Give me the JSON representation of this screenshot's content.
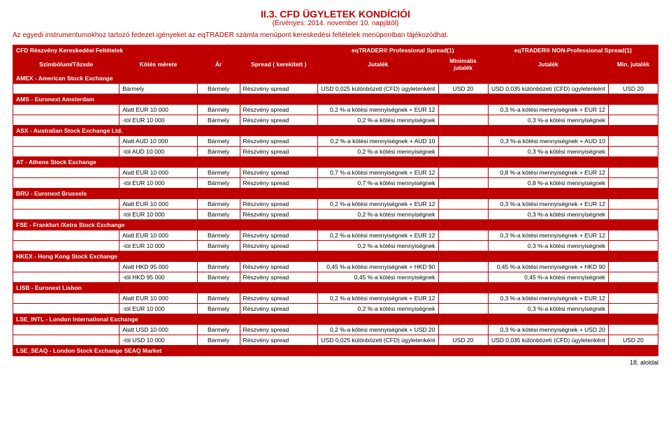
{
  "title": "II.3. CFD ÜGYLETEK KONDÍCIÓI",
  "subtitle": "(Érvényes: 2014. november 10. napjától)",
  "intro": "Az egyedi instrumentumokhoz tartozó fedezet igényeket az eqTRADER számla menüpont kereskedési feltételek menüpontban tájékozódhat.",
  "topHeader": {
    "left": "CFD Részvény Kereskedési Feltételek",
    "pro": "eqTRADER® Professional Spread(1)",
    "nonpro": "eqTRADER® NON-Professional Spread(1)"
  },
  "cols": {
    "c1": "Szimbólum/Tőzsde",
    "c2": "Kötés mérete",
    "c3": "Ár",
    "c4": "Spread ( kerekített )",
    "c5": "Jutalék",
    "c6": "Minimális jutalék",
    "c7": "Jutalék",
    "c8": "Min. jutalék"
  },
  "sections": [
    {
      "name": "AMEX - American Stock Exchange",
      "rows": [
        {
          "size": "Bármely",
          "price": "Bármely",
          "spread": "Részvény spread",
          "j1": "USD 0,025 különbözeti (CFD) ügyletenként",
          "m1": "USD 20",
          "j2": "USD 0,035 különbözeti (CFD) ügyletenként",
          "m2": "USD 20"
        }
      ]
    },
    {
      "name": "AMS - Euronext Amsterdam",
      "rows": [
        {
          "size": "Alatt EUR 10 000",
          "price": "Bármely",
          "spread": "Részvény spread",
          "j1": "0,2 %-a kötési mennyiségnek + EUR 12",
          "m1": "",
          "j2": "0,3 %-a kötési mennyiségnek + EUR 12",
          "m2": ""
        },
        {
          "size": "-tól EUR 10 000",
          "price": "Bármely",
          "spread": "Részvény spread",
          "j1": "0,2 %-a kötési mennyiségnek",
          "m1": "",
          "j2": "0,3 %-a kötési mennyiségnek",
          "m2": ""
        }
      ]
    },
    {
      "name": "ASX - Australian Stock Exchange Ltd.",
      "rows": [
        {
          "size": "Alatt AUD 10 000",
          "price": "Bármely",
          "spread": "Részvény spread",
          "j1": "0,2 %-a kötési mennyiségnek + AUD 10",
          "m1": "",
          "j2": "0,3 %-a kötési mennyiségnek + AUD 10",
          "m2": ""
        },
        {
          "size": "-tól AUD 10 000",
          "price": "Bármely",
          "spread": "Részvény spread",
          "j1": "0,2 %-a kötési mennyiségnek",
          "m1": "",
          "j2": "0,3 %-a kötési mennyiségnek",
          "m2": ""
        }
      ]
    },
    {
      "name": "AT - Athens Stock Exchange",
      "rows": [
        {
          "size": "Alatt EUR 10 000",
          "price": "Bármely",
          "spread": "Részvény spread",
          "j1": "0,7 %-a kötési mennyiségnek + EUR 12",
          "m1": "",
          "j2": "0,8 %-a kötési mennyiségnek + EUR 12",
          "m2": ""
        },
        {
          "size": "-tól EUR 10 000",
          "price": "Bármely",
          "spread": "Részvény spread",
          "j1": "0,7 %-a kötési mennyiségnek",
          "m1": "",
          "j2": "0,8 %-a kötési mennyiségnek",
          "m2": ""
        }
      ]
    },
    {
      "name": "BRU - Euronext Brussels",
      "rows": [
        {
          "size": "Alatt EUR 10 000",
          "price": "Bármely",
          "spread": "Részvény spread",
          "j1": "0,2 %-a kötési mennyiségnek + EUR 12",
          "m1": "",
          "j2": "0,3 %-a kötési mennyiségnek + EUR 12",
          "m2": ""
        },
        {
          "size": "-tól EUR 10 000",
          "price": "Bármely",
          "spread": "Részvény spread",
          "j1": "0,2 %-a kötési mennyiségnek",
          "m1": "",
          "j2": "0,3 %-a kötési mennyiségnek",
          "m2": ""
        }
      ]
    },
    {
      "name": "FSE - Frankfurt /Xetra Stock Exchange",
      "rows": [
        {
          "size": "Alatt EUR 10 000",
          "price": "Bármely",
          "spread": "Részvény spread",
          "j1": "0,2 %-a kötési mennyiségnek + EUR 12",
          "m1": "",
          "j2": "0,3 %-a kötési mennyiségnek + EUR 12",
          "m2": ""
        },
        {
          "size": "-tól EUR 10 000",
          "price": "Bármely",
          "spread": "Részvény spread",
          "j1": "0,2 %-a kötési mennyiségnek",
          "m1": "",
          "j2": "0,3 %-a kötési mennyiségnek",
          "m2": ""
        }
      ]
    },
    {
      "name": "HKEX - Hong Kong Stock Exchange",
      "rows": [
        {
          "size": "Alatt HKD 95 000",
          "price": "Bármely",
          "spread": "Részvény spread",
          "j1": "0,45 %-a kötési mennyiségnek + HKD 90",
          "m1": "",
          "j2": "0,45 %-a kötési mennyiségnek + HKD 90",
          "m2": ""
        },
        {
          "size": "-tól HKD 95 000",
          "price": "Bármely",
          "spread": "Részvény spread",
          "j1": "0,45 %-a kötési mennyiségnek",
          "m1": "",
          "j2": "0,45 %-a kötési mennyiségnek",
          "m2": ""
        }
      ]
    },
    {
      "name": "LISB - Euronext Lisbon",
      "rows": [
        {
          "size": "Alatt EUR 10 000",
          "price": "Bármely",
          "spread": "Részvény spread",
          "j1": "0,2 %-a kötési mennyiségnek + EUR 12",
          "m1": "",
          "j2": "0,3 %-a kötési mennyiségnek + EUR 12",
          "m2": ""
        },
        {
          "size": "-tól EUR 10 000",
          "price": "Bármely",
          "spread": "Részvény spread",
          "j1": "0,2 %-a kötési mennyiségnek",
          "m1": "",
          "j2": "0,3 %-a kötési mennyiségnek",
          "m2": ""
        }
      ]
    },
    {
      "name": "LSE_INTL - London International Exchange",
      "rows": [
        {
          "size": "Alatt USD 10 000",
          "price": "Bármely",
          "spread": "Részvény spread",
          "j1": "0,2 %-a kötési mennyiségnek + USD 20",
          "m1": "",
          "j2": "0,3 %-a kötési mennyiségnek + USD 20",
          "m2": ""
        },
        {
          "size": "-tól USD 10 000",
          "price": "Bármely",
          "spread": "Részvény spread",
          "j1": "USD 0,025 különbözeti (CFD) ügyletenként",
          "m1": "USD 20",
          "j2": "USD 0,035 különbözeti (CFD) ügyletenként",
          "m2": "USD 20"
        }
      ]
    },
    {
      "name": "LSE_SEAQ - London Stock Exchange SEAQ Market",
      "rows": []
    }
  ],
  "footer": "18. aloldal",
  "colors": {
    "accent": "#c00000",
    "bg": "#ffffff",
    "text": "#000000"
  }
}
